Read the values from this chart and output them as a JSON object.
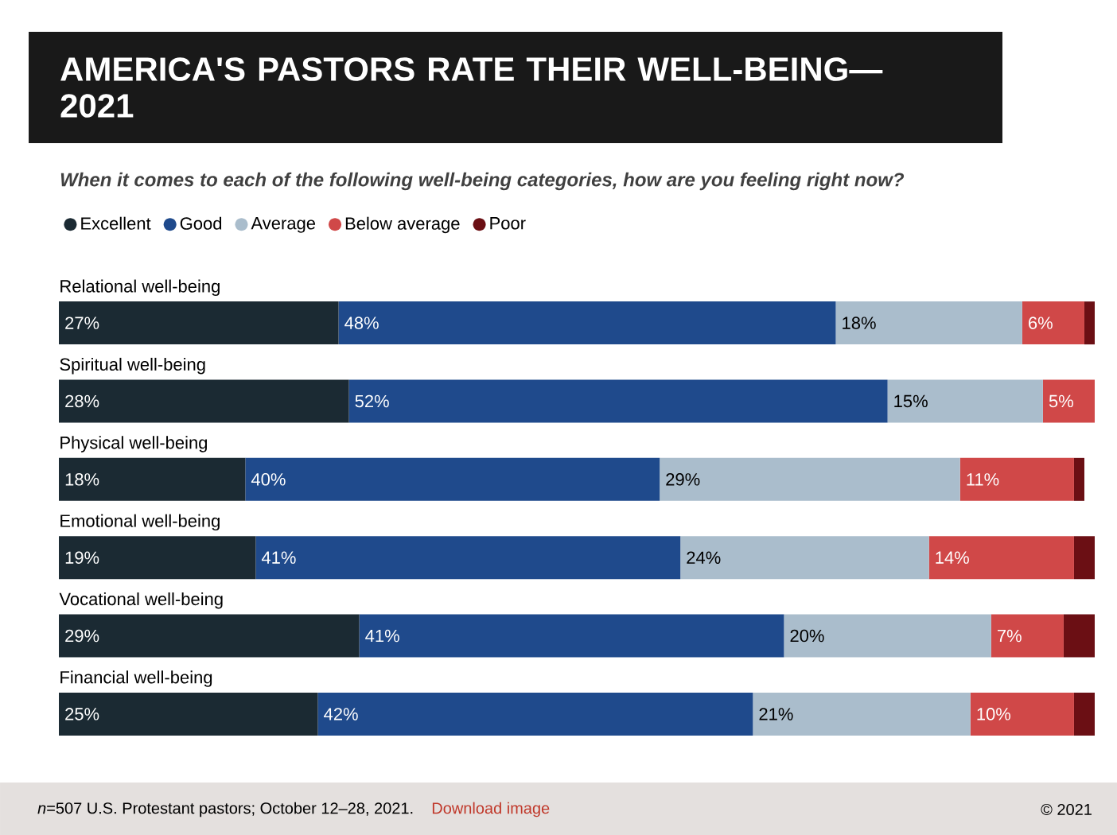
{
  "chart_data": {
    "type": "bar",
    "orientation": "horizontal",
    "stacked": true,
    "title": "AMERICA'S PASTORS RATE THEIR WELL-BEING—2021",
    "subtitle": "When it comes to each of the following well-being categories, how are you feeling right now?",
    "categories": [
      "Relational well-being",
      "Spiritual well-being",
      "Physical well-being",
      "Emotional well-being",
      "Vocational well-being",
      "Financial well-being"
    ],
    "legend": "top left",
    "grid": false,
    "series": [
      {
        "name": "Excellent",
        "color": "#1b2a33",
        "values": [
          27,
          28,
          18,
          19,
          29,
          25
        ],
        "value_labels": [
          "27%",
          "28%",
          "18%",
          "19%",
          "29%",
          "25%"
        ]
      },
      {
        "name": "Good",
        "color": "#1f4a8c",
        "values": [
          48,
          52,
          40,
          41,
          41,
          42
        ],
        "value_labels": [
          "48%",
          "52%",
          "40%",
          "41%",
          "41%",
          "42%"
        ]
      },
      {
        "name": "Average",
        "color": "#aabdcc",
        "values": [
          18,
          15,
          29,
          24,
          20,
          21
        ],
        "value_labels": [
          "18%",
          "15%",
          "29%",
          "24%",
          "20%",
          "21%"
        ]
      },
      {
        "name": "Below average",
        "color": "#d04848",
        "values": [
          6,
          5,
          11,
          14,
          7,
          10
        ],
        "value_labels": [
          "6%",
          "5%",
          "11%",
          "14%",
          "7%",
          "10%"
        ]
      },
      {
        "name": "Poor",
        "color": "#6b0f14",
        "values": [
          1,
          0,
          1,
          2,
          3,
          2
        ],
        "value_labels": [
          null,
          null,
          null,
          null,
          null,
          null
        ]
      }
    ],
    "annotations": [
      "*n*=507 U.S. Protestant pastors; October 12–28, 2021.",
      "Download image",
      "© 2021"
    ]
  }
}
